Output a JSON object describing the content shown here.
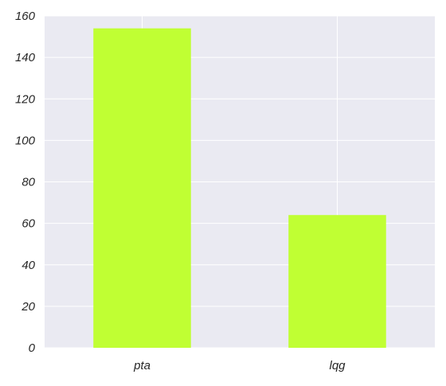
{
  "chart_data": {
    "type": "bar",
    "categories": [
      "pta",
      "lqg"
    ],
    "values": [
      154,
      64
    ],
    "ylim": [
      0,
      160
    ],
    "yticks": [
      0,
      20,
      40,
      60,
      80,
      100,
      120,
      140,
      160
    ],
    "grid": true,
    "colors": {
      "bar": "#c0ff33",
      "plot_background": "#eaeaf2",
      "grid": "#ffffff",
      "text": "#262626"
    }
  }
}
